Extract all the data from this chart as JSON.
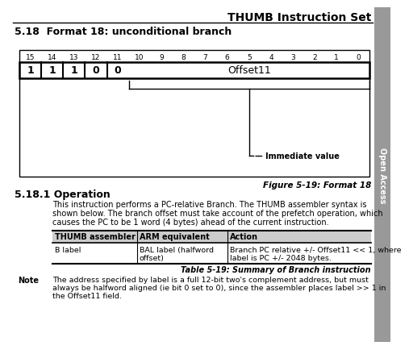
{
  "title": "THUMB Instruction Set",
  "section_title": "5.18  Format 18: unconditional branch",
  "subsection_title": "5.18.1 Operation",
  "figure_caption": "Figure 5-19: Format 18",
  "bit_labels": [
    15,
    14,
    13,
    12,
    11,
    10,
    9,
    8,
    7,
    6,
    5,
    4,
    3,
    2,
    1,
    0
  ],
  "fixed_bits": [
    "1",
    "1",
    "1",
    "0",
    "0"
  ],
  "offset_label": "Offset11",
  "immediate_label": "Immediate value",
  "body_text": "This instruction performs a PC-relative Branch. The THUMB assembler syntax is\nshown below. The branch offset must take account of the prefetch operation, which\ncauses the PC to be 1 word (4 bytes) ahead of the current instruction.",
  "table_headers": [
    "THUMB assembler",
    "ARM equivalent",
    "Action"
  ],
  "table_row": [
    "B label",
    "BAL label (halfword\noffset)",
    "Branch PC relative +/- Offset11 << 1, where\nlabel is PC +/- 2048 bytes."
  ],
  "table_caption": "Table 5-19: Summary of Branch instruction",
  "note_label": "Note",
  "note_text": "The address specified by label is a full 12-bit two's complement address, but must\nalways be halfword aligned (ie bit 0 set to 0), since the assembler places label >> 1 in\nthe Offset11 field.",
  "sidebar_text": "Open Access",
  "bg_color": "#ffffff",
  "sidebar_color": "#999999"
}
